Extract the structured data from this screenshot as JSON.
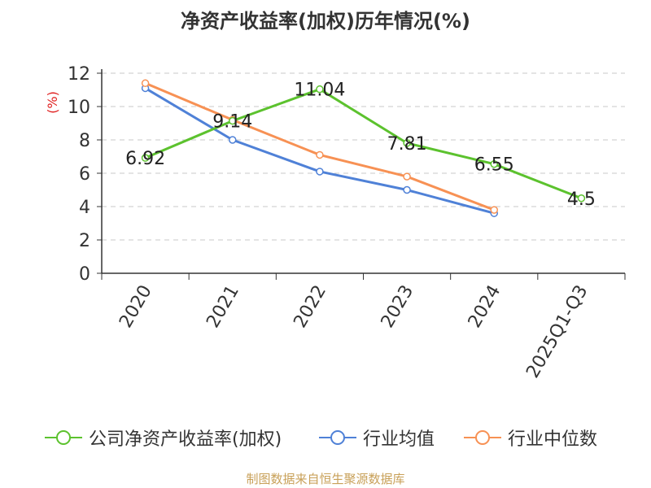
{
  "chart_data": {
    "type": "line",
    "title": "净资产收益率(加权)历年情况(%)",
    "ylabel": "(%)",
    "xlabel": "",
    "ylim": [
      0,
      12
    ],
    "yticks": [
      0,
      2,
      4,
      6,
      8,
      10,
      12
    ],
    "categories": [
      "2020",
      "2021",
      "2022",
      "2023",
      "2024",
      "2025Q1-Q3"
    ],
    "grid": true,
    "legend_position": "bottom",
    "series": [
      {
        "name": "公司净资产收益率(加权)",
        "color": "#5cc22e",
        "values": [
          6.92,
          9.14,
          11.04,
          7.81,
          6.55,
          4.5
        ],
        "labels": [
          "6.92",
          "9.14",
          "11.04",
          "7.81",
          "6.55",
          "4.5"
        ]
      },
      {
        "name": "行业均值",
        "color": "#4f81d7",
        "values": [
          11.1,
          8.0,
          6.1,
          5.0,
          3.6,
          null
        ]
      },
      {
        "name": "行业中位数",
        "color": "#f79154",
        "values": [
          11.4,
          9.2,
          7.1,
          5.8,
          3.8,
          null
        ]
      }
    ]
  },
  "source": "制图数据来自恒生聚源数据库"
}
